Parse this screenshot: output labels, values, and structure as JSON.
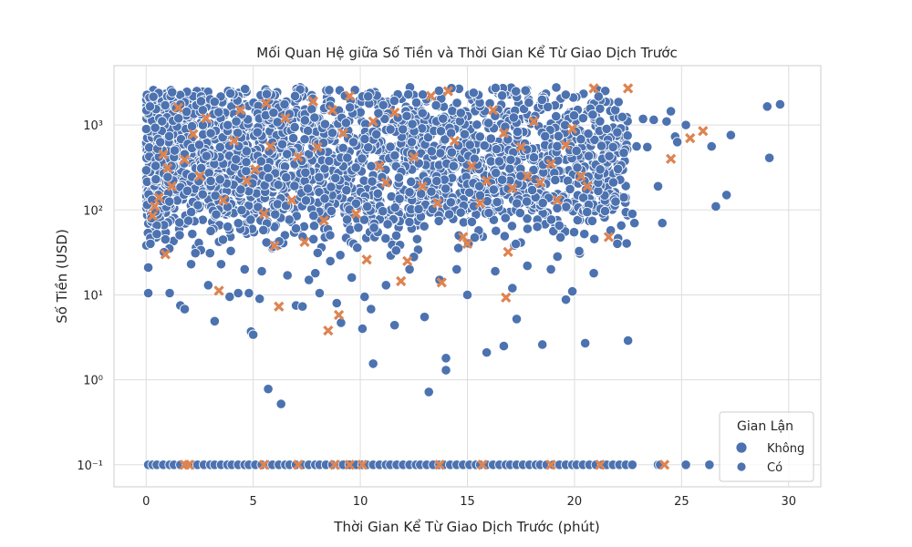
{
  "chart_data": {
    "type": "scatter",
    "title": "Mối Quan Hệ giữa Số Tiền và Thời Gian Kể Từ Giao Dịch Trước",
    "xlabel": "Thời Gian Kể Từ Giao Dịch Trước (phút)",
    "ylabel": "Số Tiền (USD)",
    "xlim": [
      -1.5,
      31.5
    ],
    "ylim": [
      0.055,
      5000
    ],
    "yscale": "log",
    "x_ticks": [
      0,
      5,
      10,
      15,
      20,
      25,
      30
    ],
    "y_ticks": [
      0.1,
      1,
      10,
      100,
      1000
    ],
    "y_tick_labels": [
      "10⁻¹",
      "10⁰",
      "10¹",
      "10²",
      "10³"
    ],
    "grid": true,
    "legend": {
      "title": "Gian Lận",
      "placement": "bottom-right"
    },
    "series": [
      {
        "name": "Không",
        "marker": "circle",
        "color": "#4c72b0",
        "points": [
          [
            0.1,
            10.5
          ],
          [
            0.1,
            21
          ],
          [
            0.2,
            40
          ],
          [
            0.5,
            52
          ],
          [
            0.9,
            45
          ],
          [
            1.1,
            10.5
          ],
          [
            1.6,
            7.5
          ],
          [
            1.8,
            6.8
          ],
          [
            2.1,
            23
          ],
          [
            2.3,
            31
          ],
          [
            2.9,
            13
          ],
          [
            3.2,
            4.9
          ],
          [
            3.5,
            23
          ],
          [
            3.9,
            9.5
          ],
          [
            4.3,
            10.5
          ],
          [
            4.6,
            20
          ],
          [
            4.8,
            10.5
          ],
          [
            4.9,
            3.7
          ],
          [
            5.0,
            3.4
          ],
          [
            5.3,
            9
          ],
          [
            5.4,
            19
          ],
          [
            5.7,
            0.78
          ],
          [
            6.3,
            0.52
          ],
          [
            6.6,
            17
          ],
          [
            7.0,
            7.5
          ],
          [
            7.3,
            7.3
          ],
          [
            7.6,
            15
          ],
          [
            7.9,
            18
          ],
          [
            8.1,
            10.5
          ],
          [
            8.6,
            25
          ],
          [
            8.9,
            8
          ],
          [
            9.1,
            4.7
          ],
          [
            9.6,
            16
          ],
          [
            10.1,
            4
          ],
          [
            10.2,
            9.5
          ],
          [
            10.5,
            6.8
          ],
          [
            10.6,
            1.55
          ],
          [
            11.2,
            13
          ],
          [
            11.6,
            4.4
          ],
          [
            12.3,
            20
          ],
          [
            12.5,
            28
          ],
          [
            13.0,
            5.5
          ],
          [
            13.2,
            0.72
          ],
          [
            13.7,
            15
          ],
          [
            14.0,
            1.8
          ],
          [
            14.0,
            1.3
          ],
          [
            14.5,
            20
          ],
          [
            15.0,
            10
          ],
          [
            15.9,
            2.1
          ],
          [
            16.3,
            19
          ],
          [
            16.7,
            2.5
          ],
          [
            17.1,
            12
          ],
          [
            17.3,
            5.2
          ],
          [
            17.8,
            22
          ],
          [
            18.5,
            2.6
          ],
          [
            18.9,
            20
          ],
          [
            19.6,
            8.8
          ],
          [
            19.9,
            11
          ],
          [
            20.5,
            2.7
          ],
          [
            20.9,
            18
          ],
          [
            22.0,
            40
          ],
          [
            22.5,
            2.9
          ],
          [
            22.7,
            90
          ],
          [
            22.8,
            70
          ],
          [
            23.4,
            550
          ],
          [
            23.9,
            190
          ],
          [
            24.1,
            70
          ],
          [
            24.3,
            1100
          ],
          [
            24.5,
            1450
          ],
          [
            24.7,
            730
          ],
          [
            25.2,
            1000
          ],
          [
            26.4,
            560
          ],
          [
            26.6,
            110
          ],
          [
            27.1,
            150
          ],
          [
            27.3,
            760
          ],
          [
            29.0,
            1650
          ],
          [
            29.1,
            410
          ],
          [
            29.6,
            1750
          ],
          [
            21.2,
            300
          ],
          [
            21.8,
            550
          ],
          [
            22.3,
            470
          ],
          [
            22.9,
            560
          ],
          [
            23.2,
            1180
          ],
          [
            23.7,
            1150
          ],
          [
            24.8,
            630
          ],
          [
            20.3,
            680
          ],
          [
            21.5,
            900
          ]
        ]
      },
      {
        "name": "Có",
        "marker": "x",
        "color": "#dd8452",
        "points": [
          [
            0.3,
            85
          ],
          [
            0.4,
            110
          ],
          [
            0.6,
            140
          ],
          [
            0.8,
            450
          ],
          [
            0.9,
            30
          ],
          [
            1.0,
            310
          ],
          [
            1.2,
            190
          ],
          [
            1.5,
            1600
          ],
          [
            1.8,
            390
          ],
          [
            2.2,
            780
          ],
          [
            2.5,
            250
          ],
          [
            2.8,
            1200
          ],
          [
            3.4,
            11.2
          ],
          [
            3.6,
            130
          ],
          [
            4.1,
            650
          ],
          [
            4.4,
            1500
          ],
          [
            4.7,
            220
          ],
          [
            5.1,
            300
          ],
          [
            5.5,
            90
          ],
          [
            5.6,
            1800
          ],
          [
            5.8,
            560
          ],
          [
            6.0,
            38
          ],
          [
            6.2,
            7.3
          ],
          [
            6.5,
            1200
          ],
          [
            6.8,
            130
          ],
          [
            7.1,
            420
          ],
          [
            7.4,
            42
          ],
          [
            7.8,
            1900
          ],
          [
            8.0,
            550
          ],
          [
            8.3,
            75
          ],
          [
            8.5,
            3.8
          ],
          [
            8.7,
            1500
          ],
          [
            9.0,
            5.8
          ],
          [
            9.2,
            800
          ],
          [
            9.5,
            2200
          ],
          [
            9.8,
            90
          ],
          [
            10.3,
            26
          ],
          [
            10.6,
            1100
          ],
          [
            10.9,
            330
          ],
          [
            11.2,
            210
          ],
          [
            11.6,
            1400
          ],
          [
            11.9,
            14.5
          ],
          [
            12.2,
            25
          ],
          [
            12.5,
            420
          ],
          [
            12.9,
            190
          ],
          [
            13.3,
            2200
          ],
          [
            13.6,
            120
          ],
          [
            13.8,
            14
          ],
          [
            14.1,
            2500
          ],
          [
            14.4,
            650
          ],
          [
            14.8,
            48
          ],
          [
            15.0,
            40
          ],
          [
            15.2,
            330
          ],
          [
            15.6,
            120
          ],
          [
            15.9,
            220
          ],
          [
            16.2,
            1500
          ],
          [
            16.7,
            800
          ],
          [
            16.8,
            9.3
          ],
          [
            16.9,
            32
          ],
          [
            17.1,
            180
          ],
          [
            17.5,
            550
          ],
          [
            17.8,
            250
          ],
          [
            18.1,
            1100
          ],
          [
            18.4,
            210
          ],
          [
            18.9,
            350
          ],
          [
            19.2,
            130
          ],
          [
            19.6,
            580
          ],
          [
            19.9,
            900
          ],
          [
            20.3,
            250
          ],
          [
            20.6,
            190
          ],
          [
            20.9,
            2700
          ],
          [
            21.6,
            48
          ],
          [
            22.5,
            2700
          ],
          [
            24.5,
            400
          ],
          [
            25.4,
            700
          ],
          [
            26.0,
            850
          ]
        ]
      }
    ],
    "baseline_y": 0.1,
    "baseline_no_x": [
      0.1,
      0.3,
      0.5,
      0.8,
      1.1,
      1.3,
      1.6,
      1.9,
      2.2,
      2.4,
      2.7,
      3.0,
      3.2,
      3.5,
      3.8,
      4.0,
      4.3,
      4.6,
      4.8,
      5.1,
      5.4,
      5.7,
      5.9,
      6.2,
      6.5,
      6.7,
      7.0,
      7.3,
      7.6,
      7.9,
      8.1,
      8.4,
      8.7,
      9.0,
      9.2,
      9.5,
      9.8,
      10.1,
      10.3,
      10.6,
      10.9,
      11.2,
      11.4,
      11.7,
      12.0,
      12.3,
      12.6,
      12.8,
      13.1,
      13.4,
      13.7,
      13.9,
      14.2,
      14.5,
      14.8,
      15.1,
      15.4,
      15.6,
      15.9,
      16.2,
      16.5,
      16.8,
      17.0,
      17.3,
      17.6,
      17.9,
      18.2,
      18.4,
      18.7,
      19.0,
      19.3,
      19.6,
      19.9,
      20.1,
      20.4,
      20.7,
      21.0,
      21.3,
      21.5,
      21.8,
      22.1,
      22.4,
      22.7,
      23.9,
      24.0,
      25.2,
      26.3
    ],
    "baseline_yes_x": [
      1.8,
      2.0,
      5.5,
      7.1,
      8.8,
      9.5,
      10.1,
      13.7,
      15.7,
      18.9,
      21.2,
      24.2
    ]
  }
}
